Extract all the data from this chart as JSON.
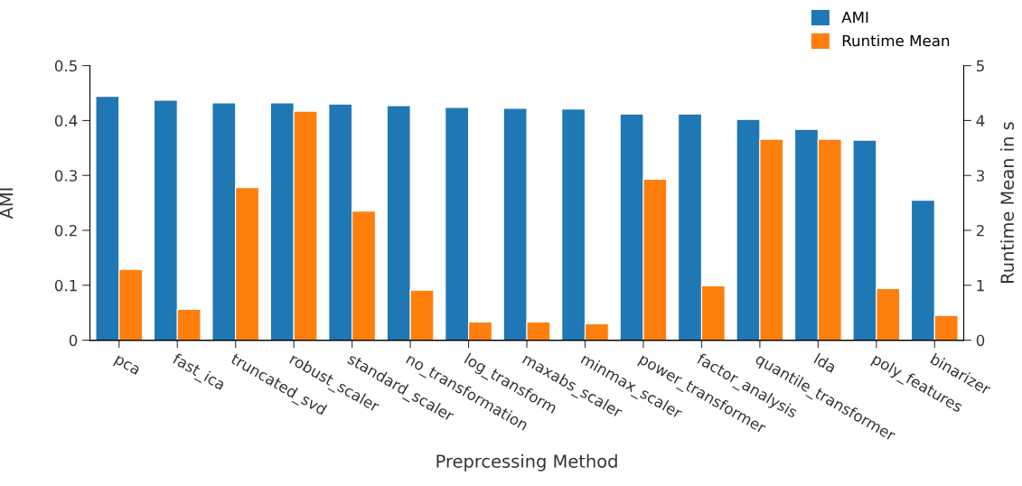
{
  "chart_data": {
    "type": "bar",
    "xlabel": "Preprcessing Method",
    "ylabel": "AMI",
    "y2label": "Runtime Mean in s",
    "categories": [
      "pca",
      "fast_ica",
      "truncated_svd",
      "robust_scaler",
      "standard_scaler",
      "no_transformation",
      "log_transform",
      "maxabs_scaler",
      "minmax_scaler",
      "power_transformer",
      "factor_analysis",
      "quantile_transformer",
      "lda",
      "poly_features",
      "binarizer"
    ],
    "series": [
      {
        "name": "AMI",
        "color": "#1f77b4",
        "values": [
          0.444,
          0.437,
          0.432,
          0.432,
          0.43,
          0.427,
          0.424,
          0.422,
          0.421,
          0.412,
          0.412,
          0.402,
          0.384,
          0.364,
          0.255
        ]
      },
      {
        "name": "Runtime Mean",
        "color": "#ff7f0e",
        "axis": "y2",
        "values": [
          1.29,
          0.56,
          2.78,
          4.17,
          2.35,
          0.91,
          0.33,
          0.33,
          0.3,
          2.93,
          0.99,
          3.66,
          3.66,
          0.94,
          0.45
        ]
      }
    ],
    "ylim": [
      0,
      0.5
    ],
    "yticks": [
      0,
      0.1,
      0.2,
      0.3,
      0.4,
      0.5
    ],
    "y2lim": [
      0,
      5
    ],
    "y2ticks": [
      0,
      1,
      2,
      3,
      4,
      5
    ],
    "grid": false,
    "legend": "top right"
  }
}
